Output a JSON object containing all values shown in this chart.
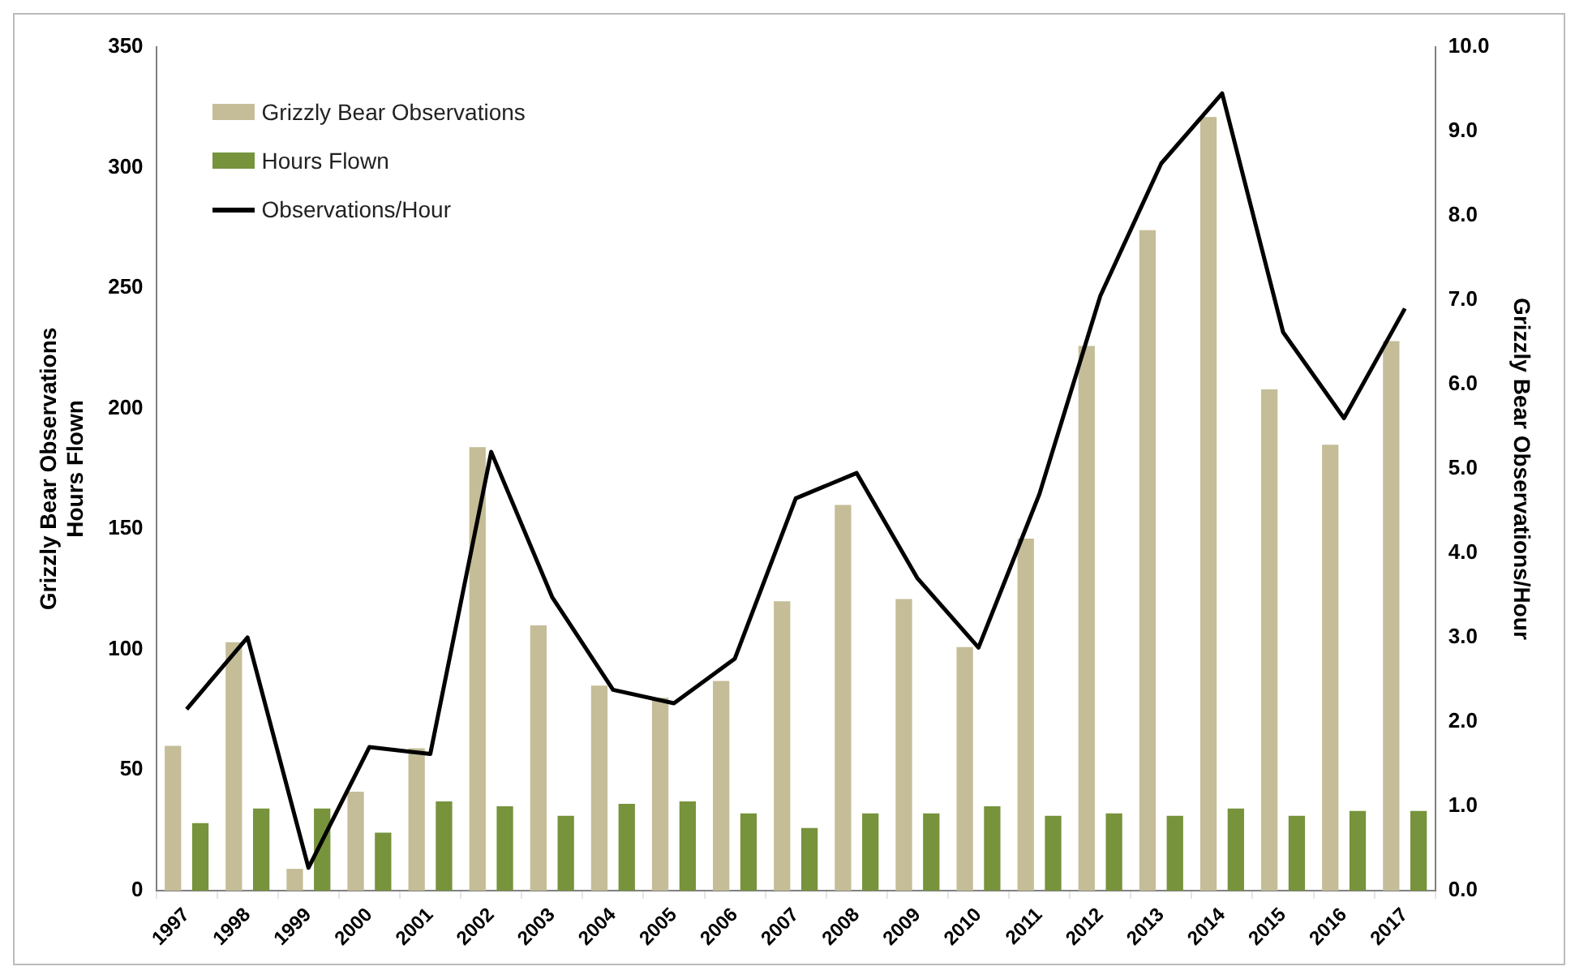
{
  "chart_data": {
    "type": "bar",
    "categories": [
      "1997",
      "1998",
      "1999",
      "2000",
      "2001",
      "2002",
      "2003",
      "2004",
      "2005",
      "2006",
      "2007",
      "2008",
      "2009",
      "2010",
      "2011",
      "2012",
      "2013",
      "2014",
      "2015",
      "2016",
      "2017"
    ],
    "series": [
      {
        "name": "Grizzly Bear Observations",
        "color": "#c4bd97",
        "values": [
          60,
          103,
          9,
          41,
          59,
          184,
          110,
          85,
          80,
          87,
          120,
          160,
          121,
          101,
          146,
          226,
          274,
          321,
          208,
          185,
          228
        ]
      },
      {
        "name": "Hours Flown",
        "color": "#77933c",
        "values": [
          28,
          34,
          34,
          24,
          37,
          35,
          31,
          36,
          37,
          32,
          26,
          32,
          32,
          35,
          31,
          32,
          31,
          34,
          31,
          33,
          33
        ]
      },
      {
        "name": "Observations/Hour",
        "type": "line",
        "axis": "y2",
        "color": "#000000",
        "values": [
          2.15,
          3.0,
          0.27,
          1.7,
          1.62,
          5.2,
          3.48,
          2.38,
          2.22,
          2.75,
          4.65,
          4.95,
          3.7,
          2.88,
          4.7,
          7.05,
          8.62,
          9.45,
          6.62,
          5.6,
          6.9
        ]
      }
    ],
    "ylabel": "Grizzly Bear Observations\nHours Flown",
    "y2label": "Grizzly Bear Observations/Hour",
    "ylim": [
      0,
      350
    ],
    "yticks": [
      0,
      50,
      100,
      150,
      200,
      250,
      300,
      350
    ],
    "y2lim": [
      0,
      10
    ],
    "y2ticks": [
      {
        "value": 0,
        "label": "0.0"
      },
      {
        "value": 1,
        "label": "1.0"
      },
      {
        "value": 2,
        "label": "2.0"
      },
      {
        "value": 3,
        "label": "3.0"
      },
      {
        "value": 4,
        "label": "4.0"
      },
      {
        "value": 5,
        "label": "5.0"
      },
      {
        "value": 6,
        "label": "6.0"
      },
      {
        "value": 7,
        "label": "7.0"
      },
      {
        "value": 8,
        "label": "8.0"
      },
      {
        "value": 9,
        "label": "9.0"
      },
      {
        "value": 10,
        "label": "10.0"
      }
    ],
    "legend": "top left",
    "marker": "none",
    "grid": false
  }
}
